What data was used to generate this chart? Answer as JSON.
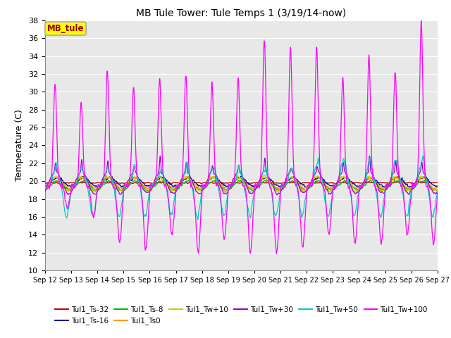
{
  "title": "MB Tule Tower: Tule Temps 1 (3/19/14-now)",
  "ylabel": "Temperature (C)",
  "ylim": [
    10,
    38
  ],
  "yticks": [
    10,
    12,
    14,
    16,
    18,
    20,
    22,
    24,
    26,
    28,
    30,
    32,
    34,
    36,
    38
  ],
  "num_days": 15,
  "xtick_labels": [
    "Sep 12",
    "Sep 13",
    "Sep 14",
    "Sep 15",
    "Sep 16",
    "Sep 17",
    "Sep 18",
    "Sep 19",
    "Sep 20",
    "Sep 21",
    "Sep 22",
    "Sep 23",
    "Sep 24",
    "Sep 25",
    "Sep 26",
    "Sep 27"
  ],
  "legend_box_label": "MB_tule",
  "legend_box_color": "#ffff00",
  "legend_box_border": "#aaaaaa",
  "legend_box_text_color": "#990000",
  "series_colors": {
    "Tul1_Ts-32": "#cc0000",
    "Tul1_Ts-16": "#000099",
    "Tul1_Ts-8": "#00bb00",
    "Tul1_Ts0": "#ff9900",
    "Tul1_Tw+10": "#cccc00",
    "Tul1_Tw+30": "#9900cc",
    "Tul1_Tw+50": "#00cccc",
    "Tul1_Tw+100": "#ff00ff"
  },
  "plot_bg_color": "#e8e8e8",
  "fig_bg_color": "#ffffff",
  "grid_color": "#ffffff",
  "points_per_day": 200
}
